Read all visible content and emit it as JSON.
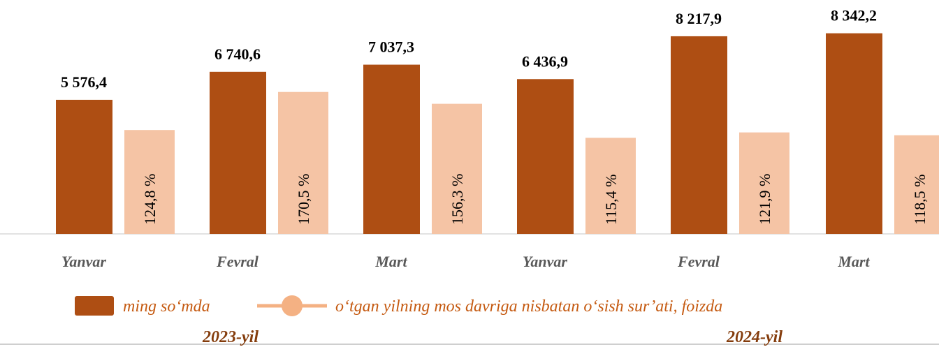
{
  "chart_data": {
    "type": "bar",
    "categories": [
      "Yanvar",
      "Fevral",
      "Mart",
      "Yanvar",
      "Fevral",
      "Mart"
    ],
    "series": [
      {
        "name": "ming so‘mda",
        "color": "#ae4e13",
        "values": [
          5576.4,
          6740.6,
          7037.3,
          6436.9,
          8217.9,
          8342.2
        ],
        "value_labels": [
          "5 576,4",
          "6 740,6",
          "7 037,3",
          "6 436,9",
          "8 217,9",
          "8 342,2"
        ]
      },
      {
        "name": "o‘tgan yilning mos davriga nisbatan o‘sish sur’ati, foizda",
        "color": "#f5c4a5",
        "axis": "y2",
        "values": [
          124.8,
          170.5,
          156.3,
          115.4,
          121.9,
          118.5
        ],
        "value_labels": [
          "124,8 %",
          "170,5 %",
          "156,3 %",
          "115,4 %",
          "121,9 %",
          "118,5 %"
        ]
      }
    ],
    "annotations": [
      "2023-yil",
      "2024-yil"
    ],
    "ylim": [
      0,
      9000
    ],
    "y2lim": [
      0,
      260
    ],
    "legend": "bottom"
  }
}
